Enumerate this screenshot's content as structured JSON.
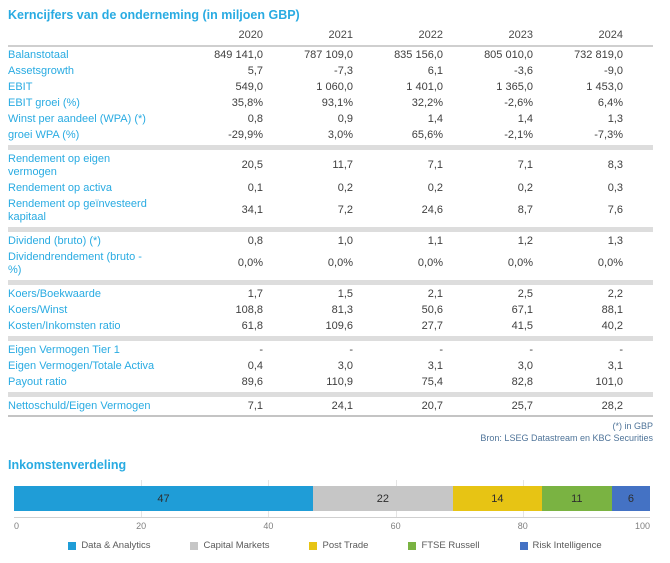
{
  "chart_data": [
    {
      "type": "table",
      "title": "Kerncijfers van de onderneming (in miljoen GBP)",
      "columns": [
        "2020",
        "2021",
        "2022",
        "2023",
        "2024"
      ],
      "groups": [
        {
          "rows": [
            {
              "label": "Balanstotaal",
              "values": [
                "849 141,0",
                "787 109,0",
                "835 156,0",
                "805 010,0",
                "732 819,0"
              ]
            },
            {
              "label": "Assetsgrowth",
              "values": [
                "5,7",
                "-7,3",
                "6,1",
                "-3,6",
                "-9,0"
              ]
            },
            {
              "label": "EBIT",
              "values": [
                "549,0",
                "1 060,0",
                "1 401,0",
                "1 365,0",
                "1 453,0"
              ]
            },
            {
              "label": "EBIT groei (%)",
              "values": [
                "35,8%",
                "93,1%",
                "32,2%",
                "-2,6%",
                "6,4%"
              ]
            },
            {
              "label": "Winst per aandeel (WPA) (*)",
              "values": [
                "0,8",
                "0,9",
                "1,4",
                "1,4",
                "1,3"
              ]
            },
            {
              "label": "groei WPA (%)",
              "values": [
                "-29,9%",
                "3,0%",
                "65,6%",
                "-2,1%",
                "-7,3%"
              ]
            }
          ]
        },
        {
          "rows": [
            {
              "label": "Rendement op eigen\nvermogen",
              "values": [
                "20,5",
                "11,7",
                "7,1",
                "7,1",
                "8,3"
              ]
            },
            {
              "label": "Rendement op activa",
              "values": [
                "0,1",
                "0,2",
                "0,2",
                "0,2",
                "0,3"
              ]
            },
            {
              "label": "Rendement op geïnvesteerd\nkapitaal",
              "values": [
                "34,1",
                "7,2",
                "24,6",
                "8,7",
                "7,6"
              ]
            }
          ]
        },
        {
          "rows": [
            {
              "label": "Dividend (bruto) (*)",
              "values": [
                "0,8",
                "1,0",
                "1,1",
                "1,2",
                "1,3"
              ]
            },
            {
              "label": "Dividendrendement (bruto -\n%)",
              "values": [
                "0,0%",
                "0,0%",
                "0,0%",
                "0,0%",
                "0,0%"
              ]
            }
          ]
        },
        {
          "rows": [
            {
              "label": "Koers/Boekwaarde",
              "values": [
                "1,7",
                "1,5",
                "2,1",
                "2,5",
                "2,2"
              ]
            },
            {
              "label": "Koers/Winst",
              "values": [
                "108,8",
                "81,3",
                "50,6",
                "67,1",
                "88,1"
              ]
            },
            {
              "label": "Kosten/Inkomsten ratio",
              "values": [
                "61,8",
                "109,6",
                "27,7",
                "41,5",
                "40,2"
              ]
            }
          ]
        },
        {
          "rows": [
            {
              "label": "Eigen Vermogen Tier 1",
              "values": [
                "-",
                "-",
                "-",
                "-",
                "-"
              ]
            },
            {
              "label": "Eigen Vermogen/Totale Activa",
              "values": [
                "0,4",
                "3,0",
                "3,1",
                "3,0",
                "3,1"
              ]
            },
            {
              "label": "Payout ratio",
              "values": [
                "89,6",
                "110,9",
                "75,4",
                "82,8",
                "101,0"
              ]
            }
          ]
        },
        {
          "rows": [
            {
              "label": "Nettoschuld/Eigen Vermogen",
              "values": [
                "7,1",
                "24,1",
                "20,7",
                "25,7",
                "28,2"
              ]
            }
          ]
        }
      ],
      "footnote": "(*) in GBP",
      "source": "Bron: LSEG Datastream en KBC Securities"
    },
    {
      "type": "bar",
      "stacked": true,
      "orientation": "horizontal",
      "title": "Inkomstenverdeling",
      "series": [
        {
          "name": "Data & Analytics",
          "value": 47,
          "color": "#1F9DD7"
        },
        {
          "name": "Capital Markets",
          "value": 22,
          "color": "#C6C6C6"
        },
        {
          "name": "Post Trade",
          "value": 14,
          "color": "#E7C414"
        },
        {
          "name": "FTSE Russell",
          "value": 11,
          "color": "#7AB342"
        },
        {
          "name": "Risk Intelligence",
          "value": 6,
          "color": "#4472C4"
        }
      ],
      "xlim": [
        0,
        100
      ],
      "ticks": [
        0,
        20,
        40,
        60,
        80,
        100
      ],
      "grid": true,
      "legend_position": "bottom"
    }
  ],
  "colors": {
    "accent_cyan": "#29ABE2",
    "table_text": "#404040",
    "separator": "#DDDDDD",
    "source_text": "#4F7499"
  }
}
